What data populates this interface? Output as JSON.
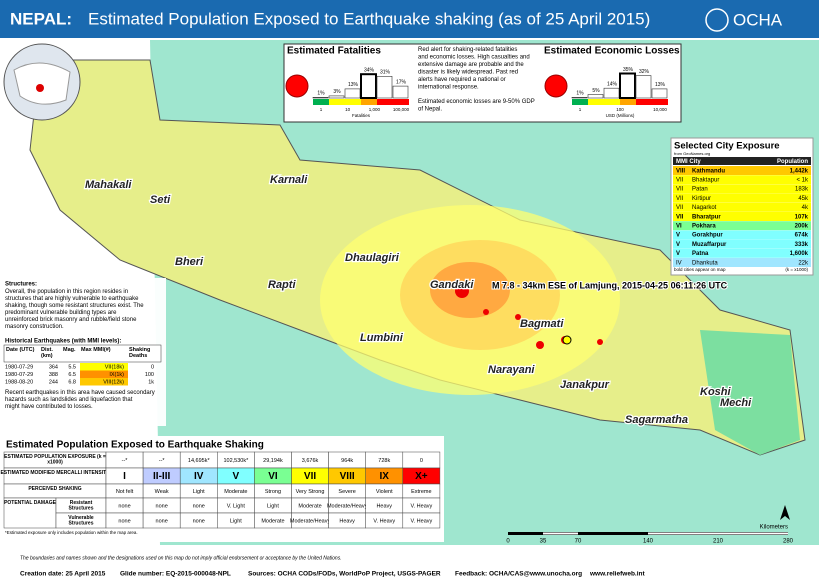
{
  "header": {
    "title_prefix": "NEPAL:",
    "title": "Estimated Population Exposed to Earthquake shaking (as of 25 April 2015)",
    "logo": "OCHA"
  },
  "fatalities": {
    "title": "Estimated Fatalities",
    "values": [
      1,
      3,
      13,
      34,
      31,
      17
    ],
    "value_labels": [
      "1%",
      "3%",
      "13%",
      "34%",
      "31%",
      "17%"
    ],
    "colors": [
      "#00b050",
      "#ffff00",
      "#ffff00",
      "#ffa500",
      "#ff0000",
      "#ff0000"
    ],
    "axis_labels": [
      "1",
      "10",
      "1,000",
      "100,000"
    ],
    "axis_title": "Fatalities"
  },
  "alert_text": "Red alert for shaking-related fatalities and economic losses. High casualties and extensive damage are probable and the disaster is likely widespread. Past red alerts have required a national or international response.",
  "gdp_text": "Estimated economic losses are 9-50% GDP of Nepal.",
  "economic": {
    "title": "Estimated Economic Losses",
    "values": [
      1,
      5,
      14,
      35,
      32,
      13
    ],
    "value_labels": [
      "1%",
      "5%",
      "14%",
      "35%",
      "32%",
      "13%"
    ],
    "colors": [
      "#00b050",
      "#ffff00",
      "#ffff00",
      "#ffa500",
      "#ff0000",
      "#ff0000"
    ],
    "axis_labels": [
      "1",
      "100",
      "10,000"
    ],
    "axis_title": "USD (Millions)"
  },
  "city_table": {
    "title": "Selected City Exposure",
    "source": "from GeoNames.org",
    "headers": [
      "MMI City",
      "Population"
    ],
    "rows": [
      [
        "VIII",
        "Kathmandu",
        "1,442k"
      ],
      [
        "VII",
        "Bhaktapur",
        "< 1k"
      ],
      [
        "VII",
        "Patan",
        "183k"
      ],
      [
        "VII",
        "Kirtipur",
        "45k"
      ],
      [
        "VII",
        "Nagarkot",
        "4k"
      ],
      [
        "VII",
        "Bharatpur",
        "107k"
      ],
      [
        "VI",
        "Pokhara",
        "200k"
      ],
      [
        "V",
        "Gorakhpur",
        "674k"
      ],
      [
        "V",
        "Muzaffarpur",
        "333k"
      ],
      [
        "V",
        "Patna",
        "1,600k"
      ],
      [
        "IV",
        "Dhankuta",
        "22k"
      ]
    ],
    "note": "bold cities appear on map",
    "unit": "(k = x1000)"
  },
  "regions": [
    "Mahakali",
    "Seti",
    "Karnali",
    "Bheri",
    "Rapti",
    "Dhaulagiri",
    "Gandaki",
    "Lumbini",
    "Bagmati",
    "Narayani",
    "Janakpur",
    "Sagarmatha",
    "Koshi",
    "Mechi"
  ],
  "event_label": "M 7.8 - 34km ESE of Lamjung, 2015-04-25 06:11:26 UTC",
  "structures": {
    "title": "Structures:",
    "text": "Overall, the population in this region resides in structures that are highly vulnerable to earthquake shaking, though some resistant structures exist. The predominant vulnerable building types are unreinforced brick masonry and rubble/field stone masonry construction."
  },
  "historical": {
    "title": "Historical Earthquakes (with MMI levels):",
    "headers": [
      "Date (UTC)",
      "Dist. (km)",
      "Mag.",
      "Max MMI(#)",
      "Shaking Deaths"
    ],
    "rows": [
      [
        "1980-07-29",
        "364",
        "5.5",
        "VII(18k)",
        "0"
      ],
      [
        "1980-07-29",
        "388",
        "6.5",
        "IX(1k)",
        "100"
      ],
      [
        "1988-08-20",
        "244",
        "6.8",
        "VIII(12k)",
        "1k"
      ]
    ]
  },
  "secondary_text": "Recent earthquakes in this area have caused secondary hazards such as landslides and liquefaction that might have contributed to losses.",
  "exposure_table": {
    "title": "Estimated Population Exposed to Earthquake Shaking",
    "row_labels": [
      "ESTIMATED POPULATION EXPOSURE (k = x1000)",
      "ESTIMATED MODIFIED MERCALLI INTENSITY",
      "PERCEIVED SHAKING",
      "POTENTIAL DAMAGE",
      "Resistant Structures",
      "Vulnerable Structures"
    ],
    "exposure": [
      "--*",
      "--*",
      "14,695k*",
      "102,530k*",
      "29,194k",
      "3,676k",
      "964k",
      "728k",
      "0"
    ],
    "mmi": [
      "I",
      "II-III",
      "IV",
      "V",
      "VI",
      "VII",
      "VIII",
      "IX",
      "X+"
    ],
    "mmi_colors": [
      "#ffffff",
      "#bfccff",
      "#a0e6ff",
      "#80ffff",
      "#7aff93",
      "#ffff00",
      "#ffc800",
      "#ff9100",
      "#ff0000"
    ],
    "shaking": [
      "Not felt",
      "Weak",
      "Light",
      "Moderate",
      "Strong",
      "Very Strong",
      "Severe",
      "Violent",
      "Extreme"
    ],
    "resistant": [
      "none",
      "none",
      "none",
      "V. Light",
      "Light",
      "Moderate",
      "Moderate/Heavy",
      "Heavy",
      "V. Heavy"
    ],
    "vulnerable": [
      "none",
      "none",
      "none",
      "Light",
      "Moderate",
      "Moderate/Heavy",
      "Heavy",
      "V. Heavy",
      "V. Heavy"
    ],
    "note": "*Estimated exposure only includes population within the map area."
  },
  "scale_bar": {
    "labels": [
      "0",
      "35",
      "70",
      "140",
      "210",
      "280"
    ],
    "unit": "Kilometers"
  },
  "disclaimer": "The boundaries and names shown and the designations used on this map do not imply official endorsement or acceptance by the United Nations.",
  "footer": [
    "Creation date: 25 April 2015",
    "Glide number: EQ-2015-000048-NPL",
    "Sources: OCHA CODs/FODs, WorldPoP Project, USGS-PAGER",
    "Feedback: OCHA/CAS@www.unocha.org",
    "www.reliefweb.int"
  ]
}
